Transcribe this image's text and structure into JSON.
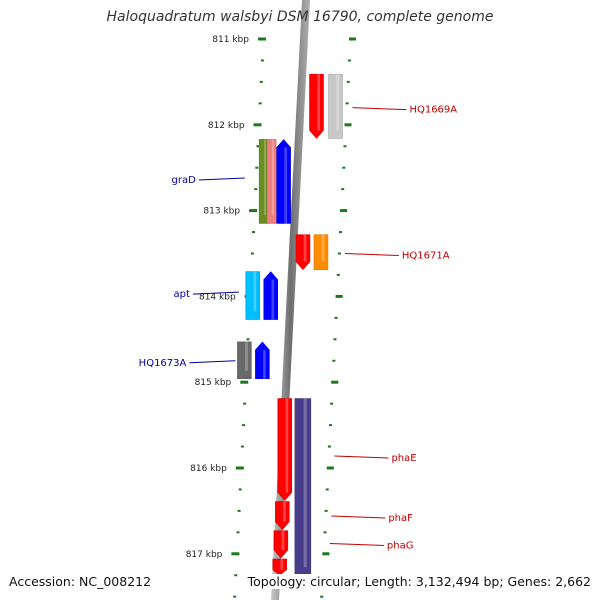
{
  "title": "Haloquadratum walsbyi DSM 16790, complete genome",
  "footer": {
    "accession": "Accession: NC_008212",
    "summary": "Topology: circular; Length: 3,132,494 bp; Genes: 2,662"
  },
  "colors": {
    "tick": "#1a7a1a",
    "label_rev": "#c00000",
    "label_fwd": "#0000a0",
    "axis": "#808080"
  },
  "ticks": [
    {
      "kbp": 811,
      "label": "811 kbp"
    },
    {
      "kbp": 812,
      "label": "812 kbp"
    },
    {
      "kbp": 813,
      "label": "813 kbp"
    },
    {
      "kbp": 814,
      "label": "814 kbp"
    },
    {
      "kbp": 815,
      "label": "815 kbp"
    },
    {
      "kbp": 816,
      "label": "816 kbp"
    },
    {
      "kbp": 817,
      "label": "817 kbp"
    }
  ],
  "features": [
    {
      "name": "HQ1669A-a",
      "start": 811.41,
      "end": 812.16,
      "strand": "rev",
      "color": "#ff0000"
    },
    {
      "name": "HQ1669A-b",
      "start": 811.41,
      "end": 812.16,
      "strand": "none",
      "color": "#c8c8c8"
    },
    {
      "name": "graD-a",
      "start": 812.17,
      "end": 813.15,
      "strand": "none",
      "color": "#6b8e23"
    },
    {
      "name": "graD-b",
      "start": 812.17,
      "end": 813.15,
      "strand": "none",
      "color": "#f08080"
    },
    {
      "name": "graD-c",
      "start": 812.17,
      "end": 813.15,
      "strand": "fwd",
      "color": "#0000ff"
    },
    {
      "name": "HQ1671A-a",
      "start": 813.28,
      "end": 813.69,
      "strand": "rev",
      "color": "#ff0000"
    },
    {
      "name": "HQ1671A-b",
      "start": 813.28,
      "end": 813.69,
      "strand": "none",
      "color": "#ff8c00"
    },
    {
      "name": "apt-a",
      "start": 813.71,
      "end": 814.27,
      "strand": "none",
      "color": "#00bfff"
    },
    {
      "name": "apt-b",
      "start": 813.71,
      "end": 814.27,
      "strand": "fwd",
      "color": "#0000ff"
    },
    {
      "name": "HQ1673A-a",
      "start": 814.53,
      "end": 814.96,
      "strand": "none",
      "color": "#696969"
    },
    {
      "name": "HQ1673A-b",
      "start": 814.53,
      "end": 814.96,
      "strand": "fwd",
      "color": "#0000ff"
    },
    {
      "name": "phaE",
      "start": 815.19,
      "end": 816.38,
      "strand": "rev",
      "color": "#ff0000"
    },
    {
      "name": "phaF",
      "start": 816.39,
      "end": 816.72,
      "strand": "rev",
      "color": "#ff0000"
    },
    {
      "name": "phaG",
      "start": 816.73,
      "end": 817.05,
      "strand": "rev",
      "color": "#ff0000"
    },
    {
      "name": "purple",
      "start": 815.19,
      "end": 817.25,
      "strand": "none",
      "color": "#483d8b"
    },
    {
      "name": "tail-red",
      "start": 817.06,
      "end": 817.25,
      "strand": "rev",
      "color": "#ff0000"
    }
  ],
  "gene_labels": [
    {
      "text": "HQ1669A",
      "kbp": 811.8,
      "side": "right"
    },
    {
      "text": "graD",
      "kbp": 812.62,
      "side": "left"
    },
    {
      "text": "HQ1671A",
      "kbp": 813.5,
      "side": "right"
    },
    {
      "text": "apt",
      "kbp": 813.95,
      "side": "left"
    },
    {
      "text": "HQ1673A",
      "kbp": 814.75,
      "side": "left"
    },
    {
      "text": "phaE",
      "kbp": 815.86,
      "side": "right"
    },
    {
      "text": "phaF",
      "kbp": 816.56,
      "side": "right"
    },
    {
      "text": "phaG",
      "kbp": 816.88,
      "side": "right"
    }
  ]
}
